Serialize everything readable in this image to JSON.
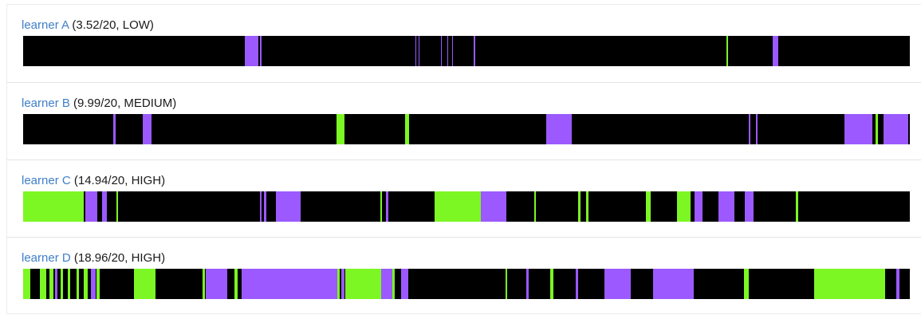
{
  "colors": {
    "background": "#000000",
    "purple": "#9b59ff",
    "green": "#7cf724",
    "link": "#3f7fc8"
  },
  "legend_note": "",
  "learners": [
    {
      "name": "learner A",
      "score": "(3.52/20, LOW)",
      "segments": [
        {
          "c": "purple",
          "s": 25.0,
          "e": 26.5
        },
        {
          "c": "purple",
          "s": 26.7,
          "e": 26.9
        },
        {
          "c": "purple",
          "s": 44.2,
          "e": 44.35
        },
        {
          "c": "purple",
          "s": 44.6,
          "e": 44.7
        },
        {
          "c": "purple",
          "s": 47.1,
          "e": 47.25
        },
        {
          "c": "purple",
          "s": 47.8,
          "e": 47.9
        },
        {
          "c": "purple",
          "s": 48.4,
          "e": 48.5
        },
        {
          "c": "purple",
          "s": 50.8,
          "e": 50.95
        },
        {
          "c": "green",
          "s": 79.3,
          "e": 79.5
        },
        {
          "c": "purple",
          "s": 84.5,
          "e": 85.2
        }
      ]
    },
    {
      "name": "learner B",
      "score": "(9.99/20, MEDIUM)",
      "segments": [
        {
          "c": "purple",
          "s": 10.2,
          "e": 10.4
        },
        {
          "c": "purple",
          "s": 13.5,
          "e": 14.5
        },
        {
          "c": "green",
          "s": 35.3,
          "e": 36.2
        },
        {
          "c": "green",
          "s": 43.1,
          "e": 43.5
        },
        {
          "c": "purple",
          "s": 59.0,
          "e": 61.9
        },
        {
          "c": "purple",
          "s": 81.8,
          "e": 82.0
        },
        {
          "c": "purple",
          "s": 82.6,
          "e": 82.8
        },
        {
          "c": "purple",
          "s": 92.6,
          "e": 95.8
        },
        {
          "c": "green",
          "s": 96.1,
          "e": 96.4
        },
        {
          "c": "purple",
          "s": 97.0,
          "e": 99.8
        }
      ]
    },
    {
      "name": "learner C",
      "score": "(14.94/20, HIGH)",
      "segments": [
        {
          "c": "green",
          "s": 0.0,
          "e": 6.8
        },
        {
          "c": "purple",
          "s": 7.0,
          "e": 8.4
        },
        {
          "c": "purple",
          "s": 8.9,
          "e": 9.4
        },
        {
          "c": "green",
          "s": 10.5,
          "e": 10.7
        },
        {
          "c": "purple",
          "s": 26.7,
          "e": 26.9
        },
        {
          "c": "purple",
          "s": 27.2,
          "e": 27.4
        },
        {
          "c": "purple",
          "s": 28.5,
          "e": 31.3
        },
        {
          "c": "green",
          "s": 40.3,
          "e": 40.5
        },
        {
          "c": "purple",
          "s": 40.9,
          "e": 41.2
        },
        {
          "c": "green",
          "s": 46.4,
          "e": 51.6
        },
        {
          "c": "purple",
          "s": 51.6,
          "e": 54.5
        },
        {
          "c": "green",
          "s": 57.6,
          "e": 57.8
        },
        {
          "c": "green",
          "s": 62.6,
          "e": 62.9
        },
        {
          "c": "green",
          "s": 63.5,
          "e": 63.8
        },
        {
          "c": "green",
          "s": 70.2,
          "e": 70.8
        },
        {
          "c": "green",
          "s": 73.7,
          "e": 75.3
        },
        {
          "c": "purple",
          "s": 75.7,
          "e": 76.6
        },
        {
          "c": "purple",
          "s": 78.4,
          "e": 80.2
        },
        {
          "c": "purple",
          "s": 81.4,
          "e": 82.4
        },
        {
          "c": "green",
          "s": 87.1,
          "e": 87.4
        }
      ]
    },
    {
      "name": "learner D",
      "score": "(18.96/20, HIGH)",
      "segments": [
        {
          "c": "green",
          "s": 0.0,
          "e": 0.8
        },
        {
          "c": "green",
          "s": 1.9,
          "e": 2.6
        },
        {
          "c": "green",
          "s": 3.0,
          "e": 3.4
        },
        {
          "c": "purple",
          "s": 3.6,
          "e": 3.9
        },
        {
          "c": "green",
          "s": 4.2,
          "e": 4.5
        },
        {
          "c": "green",
          "s": 5.0,
          "e": 5.3
        },
        {
          "c": "green",
          "s": 6.0,
          "e": 6.3
        },
        {
          "c": "green",
          "s": 6.8,
          "e": 7.3
        },
        {
          "c": "purple",
          "s": 7.6,
          "e": 8.2
        },
        {
          "c": "green",
          "s": 8.3,
          "e": 8.6
        },
        {
          "c": "green",
          "s": 12.5,
          "e": 14.9
        },
        {
          "c": "green",
          "s": 20.2,
          "e": 20.5
        },
        {
          "c": "purple",
          "s": 20.6,
          "e": 23.0
        },
        {
          "c": "green",
          "s": 23.8,
          "e": 24.2
        },
        {
          "c": "purple",
          "s": 24.6,
          "e": 35.4
        },
        {
          "c": "green",
          "s": 35.4,
          "e": 35.7
        },
        {
          "c": "purple",
          "s": 35.9,
          "e": 36.2
        },
        {
          "c": "green",
          "s": 36.3,
          "e": 40.4
        },
        {
          "c": "purple",
          "s": 40.4,
          "e": 41.6
        },
        {
          "c": "green",
          "s": 41.6,
          "e": 41.9
        },
        {
          "c": "purple",
          "s": 42.6,
          "e": 43.4
        },
        {
          "c": "green",
          "s": 54.4,
          "e": 54.6
        },
        {
          "c": "purple",
          "s": 56.7,
          "e": 57.0
        },
        {
          "c": "green",
          "s": 59.4,
          "e": 59.8
        },
        {
          "c": "purple",
          "s": 62.3,
          "e": 62.6
        },
        {
          "c": "purple",
          "s": 65.6,
          "e": 68.5
        },
        {
          "c": "purple",
          "s": 71.0,
          "e": 75.6
        },
        {
          "c": "green",
          "s": 81.3,
          "e": 81.8
        },
        {
          "c": "green",
          "s": 89.2,
          "e": 97.2
        },
        {
          "c": "purple",
          "s": 98.5,
          "e": 98.8
        }
      ]
    }
  ]
}
